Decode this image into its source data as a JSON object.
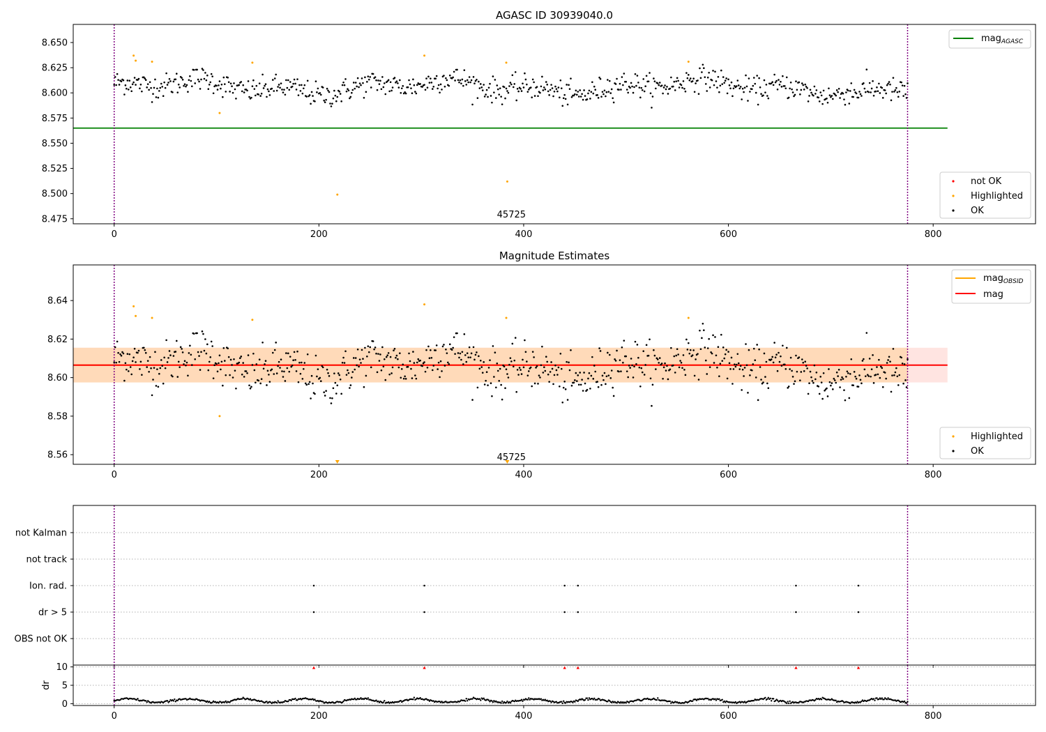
{
  "colors": {
    "ok": "#000000",
    "highlighted": "#ffa500",
    "not_ok": "#ff0000",
    "mag_agasc": "#008000",
    "mag_obsid": "#ffa500",
    "mag": "#ff0000",
    "obs_marker": "#800080",
    "band_inner": "#ffdab9",
    "band_outer": "#ffe4e1"
  },
  "chart_data": [
    {
      "type": "scatter",
      "title": "AGASC ID 30939040.0",
      "xlim": [
        -40,
        900
      ],
      "ylim": [
        8.47,
        8.668
      ],
      "x_ticks": [
        0,
        200,
        400,
        600,
        800
      ],
      "y_ticks": [
        "8.475",
        "8.500",
        "8.525",
        "8.550",
        "8.575",
        "8.600",
        "8.625",
        "8.650"
      ],
      "reference_line": {
        "label": "mag",
        "label_sub": "AGASC",
        "value": 8.565,
        "x_range": [
          -40,
          814
        ]
      },
      "obsid_markers": [
        0,
        775
      ],
      "annotation": {
        "text": "45725",
        "x": 388,
        "y": 8.477
      },
      "ok_series": {
        "count": 776,
        "mean": 8.606,
        "scatter": 0.008
      },
      "highlighted_points": [
        {
          "x": 19,
          "y": 8.637
        },
        {
          "x": 21,
          "y": 8.632
        },
        {
          "x": 37,
          "y": 8.631
        },
        {
          "x": 103,
          "y": 8.58
        },
        {
          "x": 135,
          "y": 8.63
        },
        {
          "x": 218,
          "y": 8.499
        },
        {
          "x": 303,
          "y": 8.637
        },
        {
          "x": 383,
          "y": 8.63
        },
        {
          "x": 384,
          "y": 8.512
        },
        {
          "x": 561,
          "y": 8.631
        }
      ],
      "legend_lines": [
        {
          "label": "mag",
          "label_sub": "AGASC"
        }
      ],
      "legend_points": [
        "not OK",
        "Highlighted",
        "OK"
      ]
    },
    {
      "type": "scatter",
      "title": "Magnitude Estimates",
      "xlim": [
        -40,
        900
      ],
      "ylim": [
        8.555,
        8.6585
      ],
      "x_ticks": [
        0,
        200,
        400,
        600,
        800
      ],
      "y_ticks": [
        "8.56",
        "8.58",
        "8.60",
        "8.62",
        "8.64"
      ],
      "mag_line": {
        "label": "mag",
        "value": 8.6065,
        "x_range": [
          -40,
          814
        ]
      },
      "mag_obsid_line": {
        "label": "mag",
        "label_sub": "OBSID",
        "value": 8.6065,
        "x_range": [
          -40,
          814
        ]
      },
      "band_outer": [
        8.5975,
        8.6155
      ],
      "band_inner": [
        8.5975,
        8.6155
      ],
      "obsid_markers": [
        0,
        775
      ],
      "annotation": {
        "text": "45725",
        "x": 388,
        "y": 8.5575
      },
      "ok_series": {
        "count": 776,
        "mean": 8.606,
        "scatter": 0.008
      },
      "highlighted_points": [
        {
          "x": 19,
          "y": 8.637
        },
        {
          "x": 21,
          "y": 8.632
        },
        {
          "x": 37,
          "y": 8.631
        },
        {
          "x": 103,
          "y": 8.58
        },
        {
          "x": 135,
          "y": 8.63
        },
        {
          "x": 303,
          "y": 8.638
        },
        {
          "x": 383,
          "y": 8.631
        },
        {
          "x": 561,
          "y": 8.631
        }
      ],
      "off_scale_markers": [
        {
          "x": 218
        },
        {
          "x": 384
        }
      ],
      "legend_lines": [
        {
          "label": "mag",
          "label_sub": "OBSID"
        },
        {
          "label": "mag"
        }
      ],
      "legend_points": [
        "Highlighted",
        "OK"
      ]
    },
    {
      "type": "scatter",
      "title": "",
      "xlim": [
        -40,
        900
      ],
      "categories": [
        "OBS not OK",
        "dr > 5",
        "Ion. rad.",
        "not track",
        "not Kalman"
      ],
      "flag_points": {
        "dr > 5": [
          195,
          303,
          440,
          453,
          666,
          727
        ],
        "Ion. rad.": [
          195,
          303,
          440,
          453,
          666,
          727
        ]
      },
      "obsid_markers": [
        0,
        775
      ]
    },
    {
      "type": "scatter",
      "title": "",
      "xlim": [
        -40,
        900
      ],
      "ylim": [
        -0.5,
        10.5
      ],
      "x_ticks": [
        0,
        200,
        400,
        600,
        800
      ],
      "y_ticks": [
        "0",
        "5",
        "10"
      ],
      "ylabel": "dr",
      "clipped_markers": [
        195,
        303,
        440,
        453,
        666,
        727
      ],
      "ok_series": {
        "count": 776,
        "mean": 0.8,
        "scatter": 0.3
      },
      "obsid_markers": [
        0,
        775
      ]
    }
  ]
}
